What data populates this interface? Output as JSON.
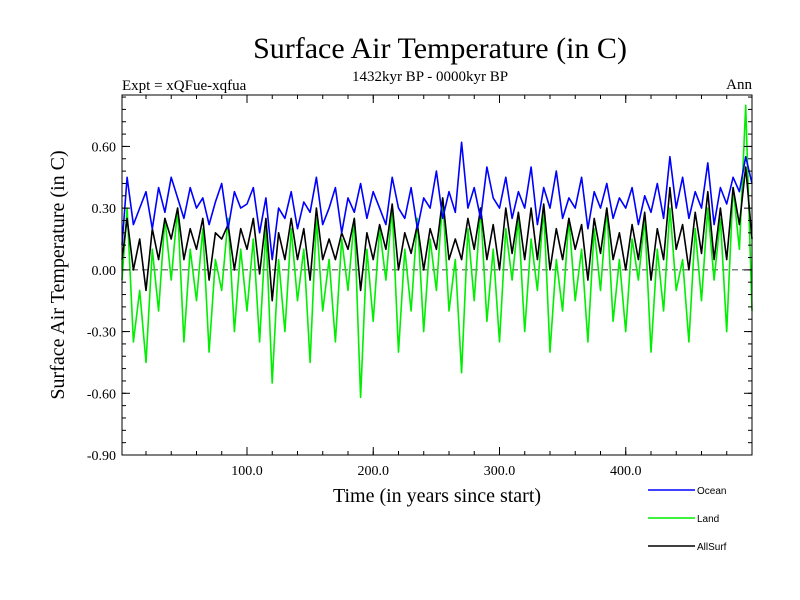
{
  "chart_data": {
    "type": "line",
    "title": "Surface Air Temperature (in C)",
    "subtitle_left": "Expt = xQFue-xqfua",
    "subtitle_center": "1432kyr BP - 0000kyr BP",
    "subtitle_right": "Ann",
    "xlabel": "Time (in years since start)",
    "ylabel": "Surface Air Temperature (in C)",
    "xlim": [
      1,
      500
    ],
    "ylim": [
      -0.9,
      0.85
    ],
    "xticks": [
      100,
      200,
      300,
      400
    ],
    "xtick_labels": [
      "100.0",
      "200.0",
      "300.0",
      "400.0"
    ],
    "yticks": [
      -0.9,
      -0.6,
      -0.3,
      0.0,
      0.3,
      0.6
    ],
    "ytick_labels": [
      "-0.90",
      "-0.60",
      "-0.30",
      "0.00",
      "0.30",
      "0.60"
    ],
    "zero_line": true,
    "legend_position": "bottom-right",
    "x": [
      1,
      5,
      10,
      15,
      20,
      25,
      30,
      35,
      40,
      45,
      50,
      55,
      60,
      65,
      70,
      75,
      80,
      85,
      90,
      95,
      100,
      105,
      110,
      115,
      120,
      125,
      130,
      135,
      140,
      145,
      150,
      155,
      160,
      165,
      170,
      175,
      180,
      185,
      190,
      195,
      200,
      205,
      210,
      215,
      220,
      225,
      230,
      235,
      240,
      245,
      250,
      255,
      260,
      265,
      270,
      275,
      280,
      285,
      290,
      295,
      300,
      305,
      310,
      315,
      320,
      325,
      330,
      335,
      340,
      345,
      350,
      355,
      360,
      365,
      370,
      375,
      380,
      385,
      390,
      395,
      400,
      405,
      410,
      415,
      420,
      425,
      430,
      435,
      440,
      445,
      450,
      455,
      460,
      465,
      470,
      475,
      480,
      485,
      490,
      495,
      500
    ],
    "series": [
      {
        "name": "Ocean",
        "color": "#0000ff",
        "values": [
          0.12,
          0.45,
          0.22,
          0.3,
          0.38,
          0.2,
          0.4,
          0.28,
          0.45,
          0.35,
          0.25,
          0.4,
          0.3,
          0.35,
          0.22,
          0.33,
          0.42,
          0.2,
          0.38,
          0.3,
          0.32,
          0.4,
          0.18,
          0.35,
          0.05,
          0.3,
          0.25,
          0.38,
          0.2,
          0.33,
          0.28,
          0.45,
          0.22,
          0.3,
          0.4,
          0.18,
          0.35,
          0.28,
          0.42,
          0.25,
          0.38,
          0.3,
          0.22,
          0.45,
          0.3,
          0.25,
          0.4,
          0.2,
          0.35,
          0.3,
          0.48,
          0.25,
          0.38,
          0.28,
          0.62,
          0.3,
          0.4,
          0.25,
          0.5,
          0.35,
          0.3,
          0.45,
          0.25,
          0.38,
          0.3,
          0.5,
          0.22,
          0.4,
          0.3,
          0.48,
          0.25,
          0.35,
          0.3,
          0.45,
          0.2,
          0.38,
          0.3,
          0.42,
          0.25,
          0.35,
          0.3,
          0.4,
          0.22,
          0.36,
          0.28,
          0.42,
          0.25,
          0.55,
          0.3,
          0.45,
          0.25,
          0.38,
          0.3,
          0.52,
          0.22,
          0.4,
          0.32,
          0.45,
          0.38,
          0.55,
          0.42
        ]
      },
      {
        "name": "Land",
        "color": "#00ee00",
        "values": [
          -0.05,
          0.3,
          -0.35,
          -0.1,
          -0.45,
          0.1,
          -0.2,
          0.25,
          -0.05,
          0.3,
          -0.35,
          0.1,
          -0.15,
          0.2,
          -0.4,
          0.05,
          -0.1,
          0.25,
          -0.3,
          0.1,
          -0.2,
          0.15,
          -0.35,
          0.2,
          -0.55,
          0.05,
          -0.3,
          0.2,
          -0.15,
          0.1,
          -0.45,
          0.25,
          -0.2,
          0.05,
          -0.35,
          0.15,
          -0.1,
          0.25,
          -0.62,
          0.1,
          -0.25,
          0.2,
          -0.05,
          0.3,
          -0.4,
          0.1,
          -0.2,
          0.25,
          -0.3,
          0.15,
          -0.1,
          0.35,
          -0.2,
          0.05,
          -0.5,
          0.2,
          -0.15,
          0.3,
          -0.25,
          0.1,
          -0.35,
          0.2,
          -0.05,
          0.25,
          -0.3,
          0.15,
          -0.1,
          0.3,
          -0.4,
          0.05,
          -0.2,
          0.25,
          -0.15,
          0.1,
          -0.35,
          0.2,
          -0.1,
          0.3,
          -0.25,
          0.05,
          -0.3,
          0.15,
          -0.05,
          0.25,
          -0.4,
          0.1,
          -0.2,
          0.3,
          -0.1,
          0.05,
          -0.35,
          0.2,
          -0.15,
          0.3,
          -0.05,
          0.25,
          -0.3,
          0.4,
          0.1,
          0.8,
          -0.2
        ]
      },
      {
        "name": "AllSurf",
        "color": "#000000",
        "values": [
          0.05,
          0.25,
          0.0,
          0.15,
          -0.1,
          0.2,
          0.05,
          0.25,
          0.15,
          0.3,
          0.05,
          0.2,
          0.1,
          0.25,
          -0.05,
          0.18,
          0.15,
          0.22,
          0.0,
          0.2,
          0.1,
          0.25,
          -0.02,
          0.25,
          -0.15,
          0.18,
          0.05,
          0.25,
          0.05,
          0.2,
          -0.05,
          0.3,
          0.05,
          0.15,
          0.05,
          0.18,
          0.1,
          0.25,
          -0.1,
          0.18,
          0.05,
          0.22,
          0.1,
          0.32,
          0.0,
          0.18,
          0.08,
          0.22,
          0.0,
          0.2,
          0.1,
          0.35,
          0.05,
          0.15,
          0.05,
          0.25,
          0.1,
          0.3,
          0.05,
          0.22,
          0.0,
          0.3,
          0.08,
          0.28,
          0.05,
          0.3,
          0.05,
          0.32,
          0.0,
          0.2,
          0.05,
          0.25,
          0.1,
          0.22,
          -0.05,
          0.25,
          0.08,
          0.3,
          0.05,
          0.18,
          0.0,
          0.22,
          0.05,
          0.28,
          -0.05,
          0.2,
          0.05,
          0.4,
          0.1,
          0.22,
          0.0,
          0.28,
          0.08,
          0.38,
          0.05,
          0.3,
          0.05,
          0.4,
          0.22,
          0.5,
          0.15
        ]
      }
    ]
  }
}
